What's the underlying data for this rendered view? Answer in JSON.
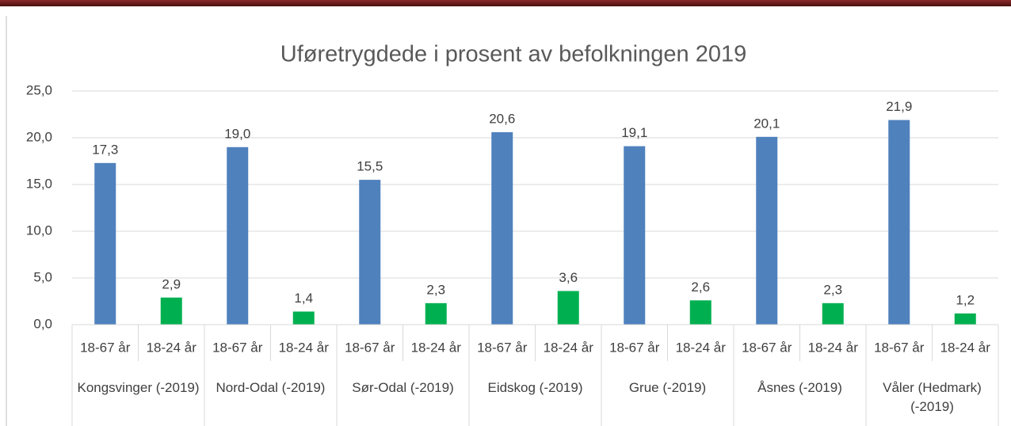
{
  "chart_data": {
    "type": "bar",
    "title": "Uføretrygdede i prosent av befolkningen 2019",
    "categories": [
      "Kongsvinger (-2019)",
      "Nord-Odal (-2019)",
      "Sør-Odal (-2019)",
      "Eidskog (-2019)",
      "Grue (-2019)",
      "Åsnes (-2019)",
      "Våler (Hedmark) (-2019)"
    ],
    "series": [
      {
        "name": "18-67 år",
        "color": "#4f81bd",
        "values": [
          17.3,
          19.0,
          15.5,
          20.6,
          19.1,
          20.1,
          21.9
        ],
        "value_labels": [
          "17,3",
          "19,0",
          "15,5",
          "20,6",
          "19,1",
          "20,1",
          "21,9"
        ]
      },
      {
        "name": "18-24 år",
        "color": "#00b050",
        "values": [
          2.9,
          1.4,
          2.3,
          3.6,
          2.6,
          2.3,
          1.2
        ],
        "value_labels": [
          "2,9",
          "1,4",
          "2,3",
          "3,6",
          "2,6",
          "2,3",
          "1,2"
        ]
      }
    ],
    "ylim": [
      0,
      25
    ],
    "yticks": [
      {
        "value": 0,
        "label": "0,0"
      },
      {
        "value": 5,
        "label": "5,0"
      },
      {
        "value": 10,
        "label": "10,0"
      },
      {
        "value": 15,
        "label": "15,0"
      },
      {
        "value": 20,
        "label": "20,0"
      },
      {
        "value": 25,
        "label": "25,0"
      }
    ],
    "grid": true
  }
}
